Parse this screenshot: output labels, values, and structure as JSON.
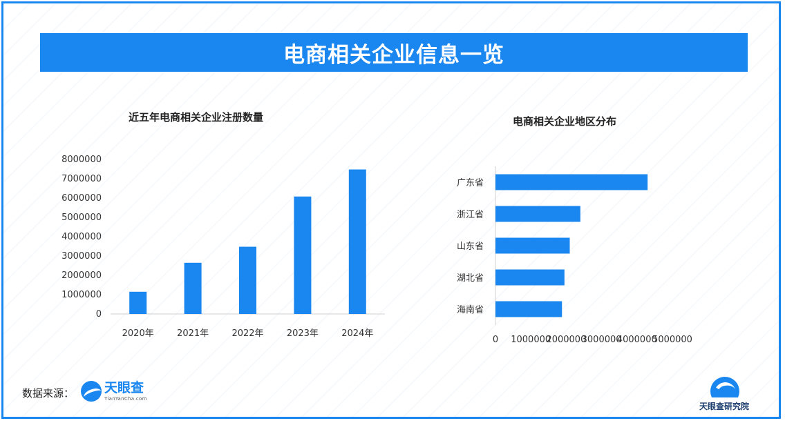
{
  "banner": {
    "title": "电商相关企业信息一览"
  },
  "colors": {
    "accent": "#1a86f0"
  },
  "chart_data": [
    {
      "type": "bar",
      "title": "近五年电商相关企业注册数量",
      "categories": [
        "2020年",
        "2021年",
        "2022年",
        "2023年",
        "2024年"
      ],
      "values": [
        1150000,
        2650000,
        3480000,
        6080000,
        7480000
      ],
      "ylim": [
        0,
        8000000
      ],
      "yticks": [
        0,
        1000000,
        2000000,
        3000000,
        4000000,
        5000000,
        6000000,
        7000000,
        8000000
      ],
      "grid": false,
      "legend": "none"
    },
    {
      "type": "bar",
      "orientation": "horizontal",
      "title": "电商相关企业地区分布",
      "categories": [
        "广东省",
        "浙江省",
        "山东省",
        "湖北省",
        "海南省"
      ],
      "values": [
        4300000,
        2400000,
        2100000,
        1950000,
        1880000
      ],
      "xlim": [
        0,
        5000000
      ],
      "xticks": [
        0,
        1000000,
        2000000,
        3000000,
        4000000,
        5000000
      ],
      "grid": false,
      "legend": "none"
    }
  ],
  "footer": {
    "source_label": "数据来源：",
    "logo_name": "天眼查",
    "logo_sub": "TianYanCha.com",
    "institute": "天眼查研究院"
  }
}
